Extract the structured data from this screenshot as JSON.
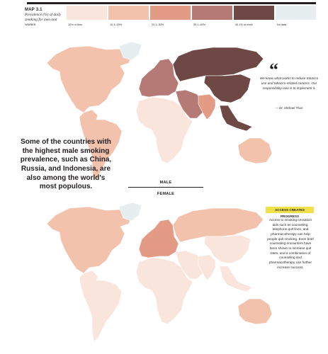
{
  "header": {
    "map_label": "MAP 3.1",
    "subtitle": "Prevalence (%) of daily smoking for men and women"
  },
  "legend": [
    {
      "label": "10% or less",
      "color": "#f9e5dc"
    },
    {
      "label": "10.1–20%",
      "color": "#f3c2ad"
    },
    {
      "label": "20.1–30%",
      "color": "#e49b86"
    },
    {
      "label": "30.1–40%",
      "color": "#b67a76"
    },
    {
      "label": "40.1% or more",
      "color": "#6e4844"
    },
    {
      "label": "No data",
      "color": "#e6eef0"
    }
  ],
  "quote": {
    "mark": "“",
    "text": "We know what works to reduce tobacco use and tobacco-related cancers. Our responsibility now is to implement it.",
    "attribution": "— Dr. Michael Thun"
  },
  "callout": "Some of the countries with the highest male smoking prevalence, such as China, Russia, and Indonesia, are also among the world's most populous.",
  "maps": {
    "male_label": "MALE",
    "female_label": "FEMALE",
    "male_shading": {
      "north_america": "10.1–20%",
      "greenland": "No data",
      "latin_america": "10.1–20%",
      "europe": "30.1–40%",
      "africa": "10% or less",
      "middle_east": "30.1–40%",
      "russia": "40.1% or more",
      "china": "40.1% or more",
      "south_asia": "20.1–30%",
      "southeast_asia": "40.1% or more",
      "australia": "10.1–20%"
    },
    "female_shading": {
      "north_america": "10.1–20%",
      "greenland": "No data",
      "latin_america": "10% or less",
      "europe": "20.1–30%",
      "africa": "10% or less",
      "middle_east": "10% or less",
      "russia": "10.1–20%",
      "china": "10% or less",
      "south_asia": "10% or less",
      "southeast_asia": "10% or less",
      "australia": "10.1–20%"
    }
  },
  "access": {
    "title": "ACCESS CREATES PROGRESS",
    "text": "Access to smoking cessation aids such as counseling, telephone quit lines, and pharmacotherapy can help people quit smoking. Even brief counseling encounters have been shown to increase quit rates, and a combination of counseling and pharmacotherapy can further increase success."
  }
}
